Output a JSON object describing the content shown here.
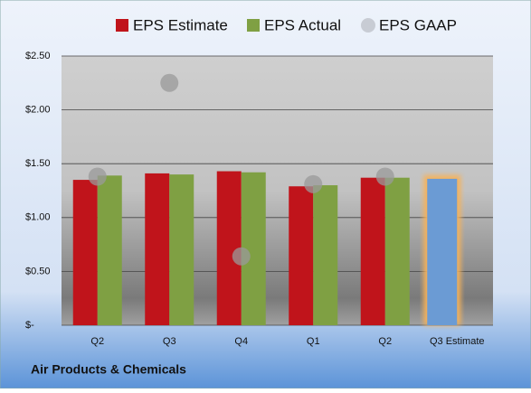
{
  "chart_data": {
    "type": "bar",
    "title": "Air Products & Chemicals",
    "categories": [
      "Q2",
      "Q3",
      "Q4",
      "Q1",
      "Q2",
      "Q3 Estimate"
    ],
    "series": [
      {
        "name": "EPS Estimate",
        "color": "#c0141b",
        "values": [
          1.35,
          1.41,
          1.43,
          1.29,
          1.37,
          1.36
        ],
        "highlight": {
          "index": 5,
          "color": "#6b9bd4",
          "glow": "#f6b25a"
        }
      },
      {
        "name": "EPS Actual",
        "color": "#7fa043",
        "values": [
          1.39,
          1.4,
          1.42,
          1.3,
          1.37,
          null
        ]
      },
      {
        "name": "EPS GAAP",
        "color": "#9a9a9a",
        "marker": "circle",
        "values": [
          1.38,
          2.25,
          0.64,
          1.31,
          1.38,
          null
        ]
      }
    ],
    "ylim": [
      0,
      2.5
    ],
    "yticks": [
      {
        "value": 0,
        "label": "$-"
      },
      {
        "value": 0.5,
        "label": "$0.50"
      },
      {
        "value": 1,
        "label": "$1.00"
      },
      {
        "value": 1.5,
        "label": "$1.50"
      },
      {
        "value": 2,
        "label": "$2.00"
      },
      {
        "value": 2.5,
        "label": "$2.50"
      }
    ],
    "grid": true
  }
}
